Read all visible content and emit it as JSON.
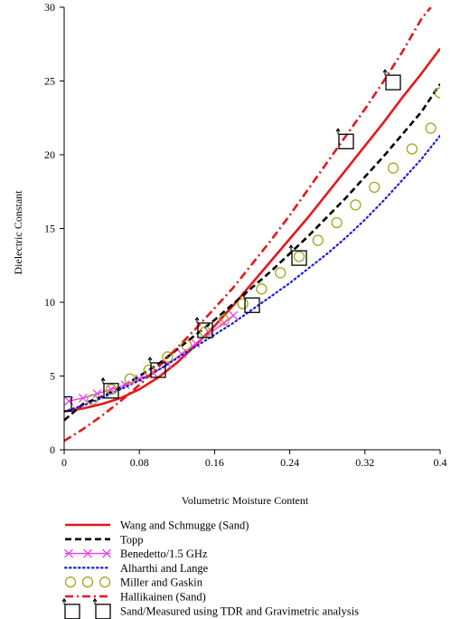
{
  "chart_data": {
    "type": "line",
    "title": "",
    "xlabel": "Volumetric Moisture Content",
    "ylabel": "Dielectric Constant",
    "xlim": [
      0,
      0.4
    ],
    "ylim": [
      0,
      30
    ],
    "xticks": [
      0,
      0.08,
      0.16,
      0.24,
      0.32,
      0.4
    ],
    "xtick_labels": [
      "0",
      "0.08",
      "0.16",
      "0.24",
      "0.32",
      "0.4"
    ],
    "yticks": [
      0,
      5,
      10,
      15,
      20,
      25,
      30
    ],
    "ytick_labels": [
      "0",
      "5",
      "10",
      "15",
      "20",
      "25",
      "30"
    ],
    "grid": false,
    "legend_position": "below",
    "series": [
      {
        "name": "Wang and Schmugge (Sand)",
        "color": "#e8161b",
        "style": "solid",
        "x": [
          0,
          0.02,
          0.04,
          0.06,
          0.08,
          0.1,
          0.12,
          0.14,
          0.16,
          0.18,
          0.2,
          0.22,
          0.24,
          0.26,
          0.28,
          0.3,
          0.32,
          0.34,
          0.36,
          0.38,
          0.4
        ],
        "y": [
          2.6,
          2.8,
          3.1,
          3.5,
          4.1,
          4.9,
          5.9,
          7.1,
          8.4,
          9.8,
          11.3,
          12.8,
          14.3,
          15.8,
          17.4,
          19.0,
          20.6,
          22.2,
          23.9,
          25.5,
          27.2
        ]
      },
      {
        "name": "Topp",
        "color": "#000000",
        "style": "dashed",
        "x": [
          0,
          0.02,
          0.04,
          0.06,
          0.08,
          0.1,
          0.12,
          0.14,
          0.16,
          0.18,
          0.2,
          0.22,
          0.24,
          0.26,
          0.28,
          0.3,
          0.32,
          0.34,
          0.36,
          0.38,
          0.4
        ],
        "y": [
          2.0,
          3.1,
          3.6,
          4.2,
          5.0,
          5.8,
          6.8,
          7.8,
          8.8,
          9.9,
          11.0,
          12.1,
          13.3,
          14.5,
          15.8,
          17.1,
          18.5,
          19.9,
          21.4,
          22.9,
          24.8
        ]
      },
      {
        "name": "Benedetto/1.5 GHz",
        "color": "#ee3ee8",
        "style": "x-markers",
        "x": [
          0.005,
          0.02,
          0.035,
          0.05,
          0.065,
          0.08,
          0.095,
          0.11,
          0.125,
          0.14,
          0.155,
          0.17,
          0.18
        ],
        "y": [
          3.3,
          3.5,
          3.8,
          4.1,
          4.4,
          4.8,
          5.2,
          5.8,
          6.5,
          7.2,
          7.9,
          8.6,
          9.1
        ]
      },
      {
        "name": "Alharthi and Lange",
        "color": "#1a1ae6",
        "style": "dotted",
        "x": [
          0,
          0.02,
          0.04,
          0.06,
          0.08,
          0.1,
          0.12,
          0.14,
          0.16,
          0.18,
          0.2,
          0.22,
          0.24,
          0.26,
          0.28,
          0.3,
          0.32,
          0.34,
          0.36,
          0.38,
          0.4
        ],
        "y": [
          2.6,
          3.0,
          3.5,
          4.1,
          4.7,
          5.4,
          6.2,
          7.0,
          7.8,
          8.6,
          9.5,
          10.4,
          11.3,
          12.3,
          13.3,
          14.4,
          15.6,
          16.9,
          18.3,
          19.7,
          21.3
        ]
      },
      {
        "name": "Miller and Gaskin",
        "color": "#a4a61a",
        "style": "circle-markers",
        "x": [
          0.03,
          0.05,
          0.07,
          0.09,
          0.11,
          0.13,
          0.15,
          0.17,
          0.19,
          0.21,
          0.23,
          0.25,
          0.27,
          0.29,
          0.31,
          0.33,
          0.35,
          0.37,
          0.39,
          0.4
        ],
        "y": [
          3.4,
          4.1,
          4.8,
          5.4,
          6.3,
          7.1,
          8.0,
          8.8,
          9.9,
          10.9,
          12.0,
          13.1,
          14.2,
          15.4,
          16.6,
          17.8,
          19.1,
          20.4,
          21.8,
          24.2
        ]
      },
      {
        "name": "Hallikainen (Sand)",
        "color": "#e8161b",
        "style": "dashdot",
        "x": [
          0,
          0.02,
          0.04,
          0.06,
          0.08,
          0.1,
          0.12,
          0.14,
          0.16,
          0.18,
          0.2,
          0.22,
          0.24,
          0.26,
          0.28,
          0.3,
          0.32,
          0.34,
          0.36,
          0.38,
          0.39
        ],
        "y": [
          0.6,
          1.4,
          2.3,
          3.3,
          4.4,
          5.6,
          6.9,
          8.2,
          9.6,
          11.0,
          12.6,
          14.2,
          15.9,
          17.7,
          19.5,
          21.3,
          23.1,
          25.0,
          27.0,
          29.2,
          30.0
        ]
      },
      {
        "name": "Sand/Measured using TDR and Gravimetric analysis",
        "color": "#000000",
        "style": "square-markers",
        "x": [
          0.0,
          0.05,
          0.1,
          0.15,
          0.2,
          0.25,
          0.3,
          0.35
        ],
        "y": [
          3.1,
          4.0,
          5.4,
          8.1,
          9.8,
          13.0,
          20.9,
          24.9
        ]
      }
    ]
  }
}
